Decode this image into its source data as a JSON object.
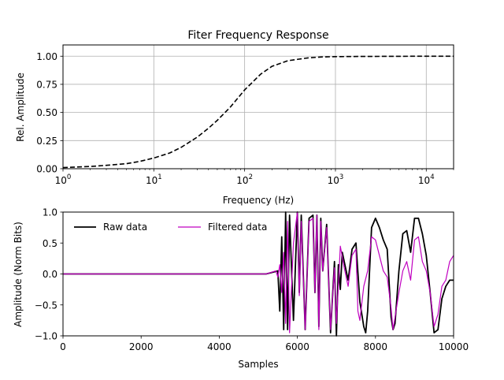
{
  "chart_data": [
    {
      "type": "line",
      "title": "Fiter Frequency Response",
      "xlabel": "Frequency (Hz)",
      "ylabel": "Rel. Amplitude",
      "xscale": "log",
      "xlim": [
        1,
        20000
      ],
      "ylim": [
        0,
        1.1
      ],
      "grid": true,
      "x_ticks": [
        {
          "value": 1,
          "base": "10",
          "exp": "0"
        },
        {
          "value": 10,
          "base": "10",
          "exp": "1"
        },
        {
          "value": 100,
          "base": "10",
          "exp": "2"
        },
        {
          "value": 1000,
          "base": "10",
          "exp": "3"
        },
        {
          "value": 10000,
          "base": "10",
          "exp": "4"
        }
      ],
      "y_ticks": [
        {
          "value": 0,
          "label": "0.00"
        },
        {
          "value": 0.25,
          "label": "0.25"
        },
        {
          "value": 0.5,
          "label": "0.50"
        },
        {
          "value": 0.75,
          "label": "0.75"
        },
        {
          "value": 1.0,
          "label": "1.00"
        }
      ],
      "series": [
        {
          "style": "dashed",
          "color": "#000000",
          "x": [
            1,
            2,
            3,
            5,
            7,
            10,
            15,
            20,
            30,
            40,
            50,
            70,
            100,
            150,
            200,
            300,
            500,
            700,
            1000,
            2000,
            5000,
            10000,
            20000
          ],
          "y": [
            0.01,
            0.02,
            0.03,
            0.045,
            0.065,
            0.095,
            0.14,
            0.19,
            0.28,
            0.36,
            0.43,
            0.55,
            0.7,
            0.84,
            0.91,
            0.96,
            0.985,
            0.993,
            0.996,
            0.998,
            0.999,
            1.0,
            1.0
          ]
        }
      ]
    },
    {
      "type": "line",
      "xlabel": "Samples",
      "ylabel": "Amplitude (Norm Bits)",
      "xlim": [
        0,
        10000
      ],
      "ylim": [
        -1,
        1
      ],
      "grid": false,
      "legend_placement": "top-left",
      "x_ticks": [
        {
          "value": 0,
          "label": "0"
        },
        {
          "value": 2000,
          "label": "2000"
        },
        {
          "value": 4000,
          "label": "4000"
        },
        {
          "value": 6000,
          "label": "6000"
        },
        {
          "value": 8000,
          "label": "8000"
        },
        {
          "value": 10000,
          "label": "10000"
        }
      ],
      "y_ticks": [
        {
          "value": -1,
          "label": "−1.0"
        },
        {
          "value": -0.5,
          "label": "−0.5"
        },
        {
          "value": 0,
          "label": "0.0"
        },
        {
          "value": 0.5,
          "label": "0.5"
        },
        {
          "value": 1,
          "label": "1.0"
        }
      ],
      "series": [
        {
          "name": "Raw data",
          "color": "#000000",
          "x": [
            0,
            5200,
            5500,
            5550,
            5600,
            5650,
            5700,
            5750,
            5800,
            5900,
            6000,
            6050,
            6100,
            6200,
            6300,
            6400,
            6450,
            6500,
            6550,
            6600,
            6650,
            6750,
            6850,
            6950,
            7000,
            7050,
            7100,
            7150,
            7200,
            7300,
            7400,
            7500,
            7600,
            7700,
            7750,
            7800,
            7900,
            8000,
            8100,
            8200,
            8300,
            8400,
            8450,
            8500,
            8600,
            8700,
            8800,
            8900,
            9000,
            9100,
            9200,
            9300,
            9400,
            9500,
            9600,
            9700,
            9800,
            9900,
            10000
          ],
          "y": [
            0,
            0,
            0.05,
            -0.6,
            0.6,
            -0.9,
            1.0,
            -0.9,
            0.95,
            -0.75,
            1.0,
            -0.3,
            0.95,
            -0.9,
            0.9,
            0.95,
            -0.3,
            0.95,
            -0.85,
            0.9,
            0.05,
            0.8,
            -0.95,
            0.2,
            -1.0,
            0.15,
            -0.25,
            0.35,
            0.2,
            -0.1,
            0.4,
            0.5,
            -0.45,
            -0.85,
            -0.95,
            -0.6,
            0.75,
            0.9,
            0.75,
            0.55,
            0.4,
            -0.7,
            -0.9,
            -0.8,
            0.05,
            0.65,
            0.7,
            0.35,
            0.9,
            0.9,
            0.65,
            0.3,
            -0.3,
            -0.95,
            -0.9,
            -0.4,
            -0.2,
            -0.1,
            -0.1
          ]
        },
        {
          "name": "Filtered data",
          "color": "#c000c0",
          "x": [
            0,
            5200,
            5450,
            5500,
            5550,
            5600,
            5650,
            5700,
            5750,
            5800,
            5900,
            6000,
            6050,
            6100,
            6200,
            6300,
            6400,
            6450,
            6500,
            6550,
            6600,
            6650,
            6750,
            6850,
            6950,
            7000,
            7050,
            7100,
            7200,
            7300,
            7400,
            7500,
            7550,
            7600,
            7700,
            7800,
            7900,
            8000,
            8100,
            8200,
            8300,
            8400,
            8450,
            8500,
            8600,
            8700,
            8800,
            8900,
            9000,
            9100,
            9200,
            9300,
            9400,
            9500,
            9600,
            9700,
            9800,
            9900,
            10000
          ],
          "y": [
            0,
            0,
            0.05,
            -0.05,
            0.15,
            -0.3,
            0.35,
            -0.8,
            0.85,
            -0.95,
            0.5,
            1.0,
            -0.35,
            0.85,
            -0.9,
            0.85,
            0.9,
            -0.3,
            0.95,
            -0.9,
            0.85,
            0.05,
            0.75,
            -0.9,
            0.1,
            -0.8,
            -0.2,
            0.45,
            0.1,
            -0.2,
            0.3,
            0.4,
            -0.6,
            -0.75,
            -0.2,
            0.05,
            0.6,
            0.55,
            0.3,
            0.05,
            -0.05,
            -0.55,
            -0.9,
            -0.7,
            -0.3,
            0.05,
            0.2,
            -0.1,
            0.55,
            0.6,
            0.2,
            0.05,
            -0.3,
            -0.85,
            -0.65,
            -0.2,
            -0.1,
            0.2,
            0.3
          ]
        }
      ]
    }
  ]
}
